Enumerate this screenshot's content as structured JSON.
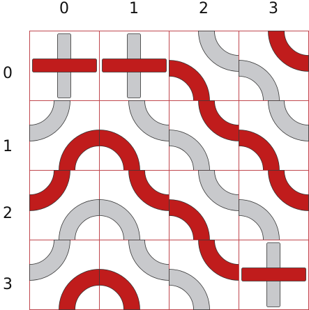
{
  "board": {
    "rows": 4,
    "cols": 4,
    "col_labels": [
      "0",
      "1",
      "2",
      "3"
    ],
    "row_labels": [
      "0",
      "1",
      "2",
      "3"
    ],
    "colors": {
      "grid_line": "#c0474e",
      "active_fill": "#c01c1c",
      "inactive_fill": "#c8c9cc",
      "outline": "#333333"
    },
    "tiles": [
      [
        {
          "kind": "cross",
          "horizontal": "active",
          "vertical": "inactive"
        },
        {
          "kind": "cross",
          "horizontal": "active",
          "vertical": "inactive"
        },
        {
          "kind": "arcs",
          "arcs": [
            {
              "corner": "top-right",
              "state": "inactive"
            },
            {
              "corner": "bottom-left",
              "state": "active"
            }
          ]
        },
        {
          "kind": "arcs",
          "arcs": [
            {
              "corner": "top-right",
              "state": "active"
            },
            {
              "corner": "bottom-left",
              "state": "inactive"
            }
          ]
        }
      ],
      [
        {
          "kind": "arcs",
          "arcs": [
            {
              "corner": "top-left",
              "state": "inactive"
            },
            {
              "corner": "bottom-right",
              "state": "active"
            }
          ]
        },
        {
          "kind": "arcs",
          "arcs": [
            {
              "corner": "top-right",
              "state": "inactive"
            },
            {
              "corner": "bottom-left",
              "state": "active"
            }
          ]
        },
        {
          "kind": "arcs",
          "arcs": [
            {
              "corner": "top-right",
              "state": "active"
            },
            {
              "corner": "bottom-left",
              "state": "inactive"
            }
          ]
        },
        {
          "kind": "arcs",
          "arcs": [
            {
              "corner": "top-right",
              "state": "inactive"
            },
            {
              "corner": "bottom-left",
              "state": "active"
            }
          ]
        }
      ],
      [
        {
          "kind": "arcs",
          "arcs": [
            {
              "corner": "top-left",
              "state": "active"
            },
            {
              "corner": "bottom-right",
              "state": "inactive"
            }
          ]
        },
        {
          "kind": "arcs",
          "arcs": [
            {
              "corner": "top-right",
              "state": "active"
            },
            {
              "corner": "bottom-left",
              "state": "inactive"
            }
          ]
        },
        {
          "kind": "arcs",
          "arcs": [
            {
              "corner": "top-right",
              "state": "inactive"
            },
            {
              "corner": "bottom-left",
              "state": "active"
            }
          ]
        },
        {
          "kind": "arcs",
          "arcs": [
            {
              "corner": "top-right",
              "state": "active"
            },
            {
              "corner": "bottom-left",
              "state": "inactive"
            }
          ]
        }
      ],
      [
        {
          "kind": "arcs",
          "arcs": [
            {
              "corner": "top-left",
              "state": "inactive"
            },
            {
              "corner": "bottom-right",
              "state": "active"
            }
          ]
        },
        {
          "kind": "arcs",
          "arcs": [
            {
              "corner": "top-right",
              "state": "inactive"
            },
            {
              "corner": "bottom-left",
              "state": "active"
            }
          ]
        },
        {
          "kind": "arcs",
          "arcs": [
            {
              "corner": "top-right",
              "state": "active"
            },
            {
              "corner": "bottom-left",
              "state": "inactive"
            }
          ]
        },
        {
          "kind": "cross",
          "horizontal": "active",
          "vertical": "inactive"
        }
      ]
    ]
  }
}
